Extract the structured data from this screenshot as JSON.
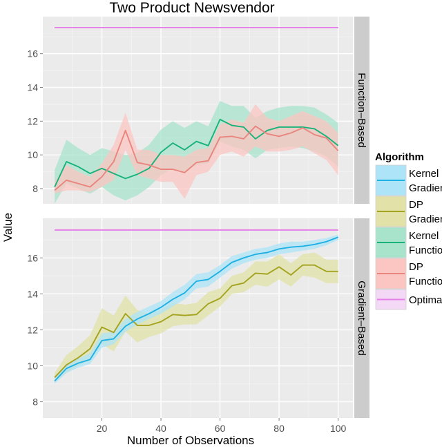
{
  "chart_data": {
    "type": "line",
    "title": "Two Product Newsvendor",
    "xlabel": "Number of Observations",
    "ylabel": "Value",
    "xlim": [
      0,
      105
    ],
    "x_ticks": [
      20,
      40,
      60,
      80,
      100
    ],
    "y_ticks": [
      8,
      10,
      12,
      14,
      16
    ],
    "legend": {
      "title": "Algorithm",
      "placement": "right",
      "entries": [
        {
          "key": "kernel_gradient",
          "line1": "Kernel",
          "line2": "Gradient",
          "color": "#1fb1e4",
          "fill": "#aee4f8"
        },
        {
          "key": "dp_gradient",
          "line1": "DP",
          "line2": "Gradient",
          "color": "#a3a31f",
          "fill": "#e2e2a8"
        },
        {
          "key": "kernel_function",
          "line1": "Kernel",
          "line2": "Function",
          "color": "#19b27a",
          "fill": "#a8e4cc"
        },
        {
          "key": "dp_function",
          "line1": "DP",
          "line2": "Function",
          "color": "#e9857f",
          "fill": "#fbc6c2"
        },
        {
          "key": "optimal",
          "line1": "Optimal",
          "line2": "",
          "color": "#e57ee8",
          "fill": "#f3d9f5"
        }
      ]
    },
    "panels": [
      {
        "strip": "Function–Based",
        "ylim": [
          7.1,
          18.2
        ],
        "series": [
          {
            "key": "optimal",
            "name": "Optimal",
            "x": [
              4,
              100
            ],
            "y": [
              17.55,
              17.55
            ]
          },
          {
            "key": "kernel_function",
            "name": "Kernel Function",
            "x": [
              4,
              8,
              12,
              16,
              20,
              24,
              28,
              32,
              36,
              40,
              44,
              48,
              52,
              56,
              60,
              64,
              68,
              72,
              76,
              80,
              84,
              88,
              92,
              96,
              100
            ],
            "y": [
              8.1,
              9.6,
              9.3,
              8.9,
              9.2,
              8.9,
              8.6,
              8.85,
              9.2,
              10.15,
              10.7,
              10.3,
              10.8,
              10.55,
              12.1,
              11.75,
              11.65,
              10.95,
              11.45,
              11.65,
              11.65,
              11.65,
              11.55,
              11.1,
              10.55
            ],
            "lo": [
              7.1,
              8.3,
              8.0,
              7.7,
              8.1,
              7.6,
              7.3,
              7.6,
              8.1,
              8.8,
              9.2,
              9.0,
              9.4,
              9.5,
              10.8,
              10.5,
              10.3,
              9.8,
              10.3,
              10.4,
              10.5,
              10.4,
              10.2,
              9.9,
              9.3
            ],
            "hi": [
              9.1,
              10.9,
              10.4,
              10.0,
              10.4,
              10.2,
              10.0,
              10.1,
              10.6,
              11.5,
              12.0,
              11.6,
              12.0,
              11.7,
              13.2,
              12.9,
              12.9,
              12.2,
              12.6,
              12.8,
              12.9,
              12.9,
              12.8,
              12.4,
              11.9
            ]
          },
          {
            "key": "dp_function",
            "name": "DP Function",
            "x": [
              4,
              8,
              12,
              16,
              20,
              24,
              28,
              32,
              36,
              40,
              44,
              48,
              52,
              56,
              60,
              64,
              68,
              72,
              76,
              80,
              84,
              88,
              92,
              96,
              100
            ],
            "y": [
              7.9,
              8.5,
              8.3,
              8.1,
              8.7,
              9.6,
              11.45,
              9.55,
              9.4,
              9.15,
              9.15,
              8.95,
              9.55,
              9.65,
              11.05,
              11.1,
              10.95,
              11.7,
              11.25,
              11.1,
              11.3,
              11.6,
              11.2,
              11.0,
              10.25
            ],
            "lo": [
              7.7,
              7.9,
              7.9,
              7.8,
              8.1,
              8.5,
              10.3,
              8.8,
              8.6,
              8.4,
              8.4,
              7.4,
              8.8,
              9.0,
              10.0,
              10.2,
              9.9,
              10.5,
              10.2,
              10.2,
              10.3,
              10.5,
              10.1,
              9.7,
              8.8
            ],
            "hi": [
              8.4,
              9.4,
              9.0,
              8.7,
              9.5,
              10.6,
              12.5,
              10.3,
              10.3,
              10.0,
              10.0,
              9.9,
              10.3,
              10.4,
              11.8,
              12.1,
              11.9,
              13.0,
              12.2,
              12.0,
              12.3,
              12.6,
              12.3,
              12.0,
              11.3
            ]
          }
        ]
      },
      {
        "strip": "Gradient–Based",
        "ylim": [
          7.1,
          18.2
        ],
        "series": [
          {
            "key": "optimal",
            "name": "Optimal",
            "x": [
              4,
              100
            ],
            "y": [
              17.55,
              17.55
            ]
          },
          {
            "key": "dp_gradient",
            "name": "DP Gradient",
            "x": [
              4,
              8,
              12,
              16,
              20,
              24,
              28,
              32,
              36,
              40,
              44,
              48,
              52,
              56,
              60,
              64,
              68,
              72,
              76,
              80,
              84,
              88,
              92,
              96,
              100
            ],
            "y": [
              9.35,
              10.05,
              10.45,
              10.95,
              12.15,
              11.85,
              12.9,
              12.25,
              12.25,
              12.45,
              12.85,
              12.8,
              12.85,
              13.45,
              13.75,
              14.45,
              14.6,
              15.15,
              15.1,
              15.5,
              15.05,
              15.6,
              15.6,
              15.25,
              15.25
            ],
            "lo": [
              9.1,
              9.6,
              10.0,
              10.3,
              11.2,
              10.8,
              11.9,
              11.3,
              11.6,
              11.8,
              12.2,
              12.3,
              12.3,
              12.8,
              13.3,
              14.0,
              14.1,
              14.5,
              14.4,
              14.8,
              14.4,
              15.0,
              14.9,
              14.6,
              14.6
            ],
            "hi": [
              9.6,
              10.6,
              11.1,
              11.7,
              13.2,
              12.8,
              13.9,
              13.1,
              12.9,
              13.1,
              13.5,
              13.4,
              13.5,
              14.1,
              14.3,
              15.0,
              15.2,
              15.8,
              15.8,
              16.2,
              15.7,
              16.2,
              16.3,
              15.9,
              15.9
            ]
          },
          {
            "key": "kernel_gradient",
            "name": "Kernel Gradient",
            "x": [
              4,
              8,
              12,
              16,
              20,
              24,
              28,
              32,
              36,
              40,
              44,
              48,
              52,
              56,
              60,
              64,
              68,
              72,
              76,
              80,
              84,
              88,
              92,
              96,
              100
            ],
            "y": [
              9.15,
              9.85,
              10.15,
              10.35,
              11.4,
              11.5,
              12.2,
              12.6,
              12.9,
              13.25,
              13.7,
              14.05,
              14.7,
              14.8,
              15.25,
              15.75,
              16.0,
              16.2,
              16.3,
              16.5,
              16.6,
              16.65,
              16.75,
              16.9,
              17.15
            ],
            "lo": [
              9.0,
              9.6,
              9.9,
              10.1,
              11.0,
              11.2,
              11.9,
              12.3,
              12.6,
              12.9,
              13.3,
              13.7,
              14.3,
              14.4,
              14.9,
              15.4,
              15.7,
              15.9,
              16.0,
              16.2,
              16.3,
              16.4,
              16.5,
              16.7,
              17.0
            ],
            "hi": [
              9.3,
              10.1,
              10.4,
              10.7,
              11.8,
              11.9,
              12.6,
              13.0,
              13.3,
              13.6,
              14.1,
              14.5,
              15.1,
              15.2,
              15.6,
              16.1,
              16.3,
              16.5,
              16.6,
              16.8,
              16.9,
              16.9,
              17.0,
              17.1,
              17.3
            ]
          }
        ]
      }
    ]
  }
}
